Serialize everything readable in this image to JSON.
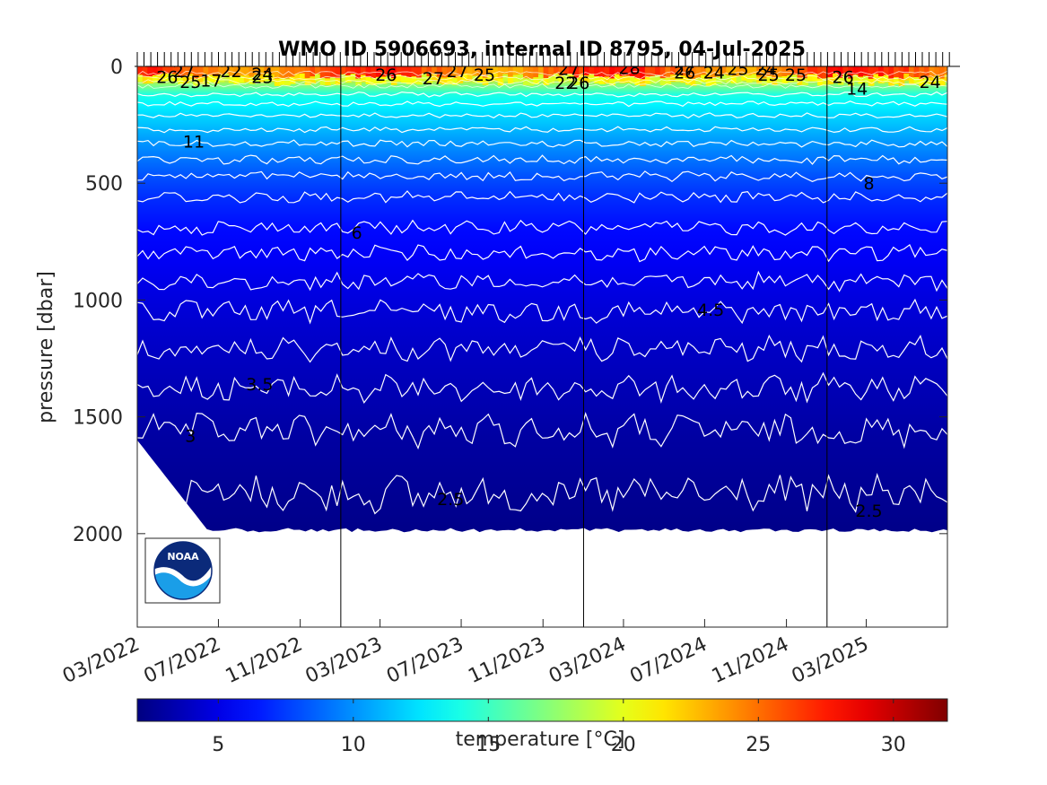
{
  "chart_data": {
    "type": "heatmap",
    "title": "WMO ID 5906693, internal ID 8795, 04-Jul-2025",
    "xlabel": "",
    "ylabel": "pressure [dbar]",
    "colorbar_label": "temperature [°C]",
    "x_tick_labels": [
      "03/2022",
      "07/2022",
      "11/2022",
      "03/2023",
      "07/2023",
      "11/2023",
      "03/2024",
      "07/2024",
      "11/2024",
      "03/2025"
    ],
    "y_ticks": [
      0,
      500,
      1000,
      1500,
      2000
    ],
    "ylim": [
      0,
      2400
    ],
    "y_reversed": true,
    "colorbar_ticks": [
      5,
      10,
      15,
      20,
      25,
      30
    ],
    "colorbar_range": [
      2,
      32
    ],
    "colormap": "jet",
    "year_divider_dates": [
      "2023-01-01",
      "2024-01-01",
      "2025-01-01"
    ],
    "x_range_dates": [
      "2022-03-01",
      "2025-07-01"
    ],
    "profile_start_date": "2022-03-01",
    "profile_end_date": "2025-07-04",
    "max_profile_pressure": 2000,
    "isotherms": [
      {
        "temp": 2.5,
        "mean_pressure": 1830
      },
      {
        "temp": 3,
        "mean_pressure": 1560
      },
      {
        "temp": 3.5,
        "mean_pressure": 1380
      },
      {
        "temp": 4,
        "mean_pressure": 1210
      },
      {
        "temp": 4.5,
        "mean_pressure": 1050
      },
      {
        "temp": 5,
        "mean_pressure": 920
      },
      {
        "temp": 5.5,
        "mean_pressure": 800
      },
      {
        "temp": 6,
        "mean_pressure": 690
      },
      {
        "temp": 7,
        "mean_pressure": 560
      },
      {
        "temp": 8,
        "mean_pressure": 470
      },
      {
        "temp": 9,
        "mean_pressure": 400
      },
      {
        "temp": 10,
        "mean_pressure": 330
      },
      {
        "temp": 11,
        "mean_pressure": 270
      },
      {
        "temp": 12,
        "mean_pressure": 210
      },
      {
        "temp": 13,
        "mean_pressure": 160
      },
      {
        "temp": 14,
        "mean_pressure": 120
      }
    ],
    "contour_labels": [
      {
        "text": "26",
        "date": "2022-04-15",
        "pressure": 45
      },
      {
        "text": "27",
        "date": "2022-05-10",
        "pressure": 20
      },
      {
        "text": "25",
        "date": "2022-05-20",
        "pressure": 65
      },
      {
        "text": "17",
        "date": "2022-06-20",
        "pressure": 60
      },
      {
        "text": "22",
        "date": "2022-07-20",
        "pressure": 20
      },
      {
        "text": "24",
        "date": "2022-09-05",
        "pressure": 30
      },
      {
        "text": "23",
        "date": "2022-09-05",
        "pressure": 45
      },
      {
        "text": "11",
        "date": "2022-05-25",
        "pressure": 320
      },
      {
        "text": "26",
        "date": "2023-03-10",
        "pressure": 35
      },
      {
        "text": "27",
        "date": "2023-05-20",
        "pressure": 50
      },
      {
        "text": "27",
        "date": "2023-06-25",
        "pressure": 20
      },
      {
        "text": "25",
        "date": "2023-08-05",
        "pressure": 35
      },
      {
        "text": "27",
        "date": "2023-12-10",
        "pressure": 10
      },
      {
        "text": "22",
        "date": "2023-12-05",
        "pressure": 70
      },
      {
        "text": "26",
        "date": "2023-12-25",
        "pressure": 70
      },
      {
        "text": "28",
        "date": "2024-03-10",
        "pressure": 5
      },
      {
        "text": "27",
        "date": "2024-06-01",
        "pressure": 10
      },
      {
        "text": "26",
        "date": "2024-06-01",
        "pressure": 25
      },
      {
        "text": "24",
        "date": "2024-07-15",
        "pressure": 25
      },
      {
        "text": "25",
        "date": "2024-08-20",
        "pressure": 10
      },
      {
        "text": "24",
        "date": "2024-10-01",
        "pressure": 10
      },
      {
        "text": "25",
        "date": "2024-10-05",
        "pressure": 35
      },
      {
        "text": "25",
        "date": "2024-11-15",
        "pressure": 35
      },
      {
        "text": "26",
        "date": "2025-01-25",
        "pressure": 45
      },
      {
        "text": "14",
        "date": "2025-02-15",
        "pressure": 95
      },
      {
        "text": "24",
        "date": "2025-06-05",
        "pressure": 65
      },
      {
        "text": "8",
        "date": "2025-03-05",
        "pressure": 500
      },
      {
        "text": "6",
        "date": "2023-01-25",
        "pressure": 710
      },
      {
        "text": "4.5",
        "date": "2024-07-10",
        "pressure": 1040
      },
      {
        "text": "3.5",
        "date": "2022-09-01",
        "pressure": 1360
      },
      {
        "text": "3",
        "date": "2022-05-20",
        "pressure": 1580
      },
      {
        "text": "2.5",
        "date": "2023-06-15",
        "pressure": 1850
      },
      {
        "text": "2.5",
        "date": "2025-03-05",
        "pressure": 1900
      }
    ]
  },
  "logo": {
    "text": "NOAA",
    "outer_color": "#0b2a7a",
    "lower_color": "#1a9ee8"
  },
  "colors": {
    "axis": "#262626",
    "contour": "#ffffff"
  }
}
